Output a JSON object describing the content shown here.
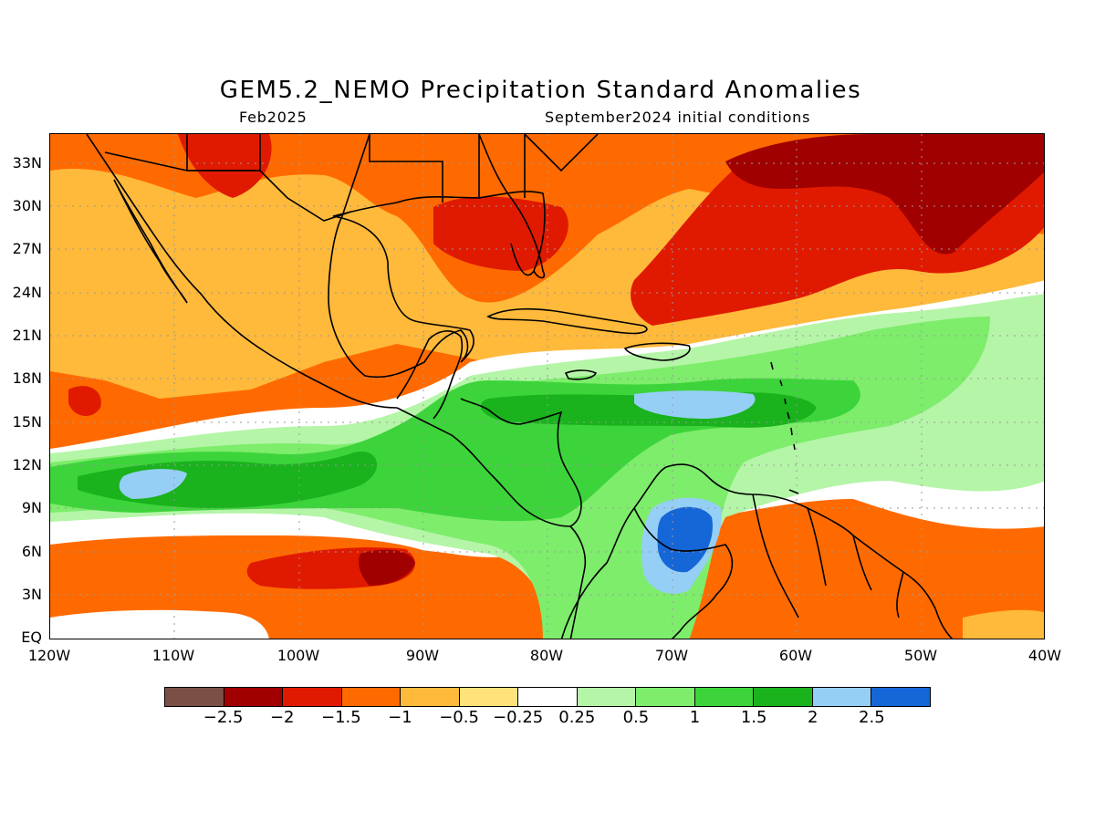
{
  "title": "GEM5.2_NEMO Precipitation Standard Anomalies",
  "subtitle_left": "Feb2025",
  "subtitle_right": "September2024 initial conditions",
  "map": {
    "lat_labels": [
      "33N",
      "30N",
      "27N",
      "24N",
      "21N",
      "18N",
      "15N",
      "12N",
      "9N",
      "6N",
      "3N",
      "EQ"
    ],
    "lon_labels": [
      "120W",
      "110W",
      "100W",
      "90W",
      "80W",
      "70W",
      "60W",
      "50W",
      "40W"
    ],
    "colors": {
      "ocean_base": "#ff6a00",
      "land_border": "#000000",
      "gridline": "#9a9a9a"
    }
  },
  "colorbar": {
    "colors": [
      "#7a4f46",
      "#a10000",
      "#e01a00",
      "#ff6a00",
      "#ffb93b",
      "#ffe27a",
      "#ffffff",
      "#b5f5a8",
      "#7ded6b",
      "#3dd43b",
      "#1ab21d",
      "#96cff5",
      "#1566d6"
    ],
    "labels": [
      "−2.5",
      "−2",
      "−1.5",
      "−1",
      "−0.5",
      "−0.25",
      "0.25",
      "0.5",
      "1",
      "1.5",
      "2",
      "2.5"
    ]
  }
}
